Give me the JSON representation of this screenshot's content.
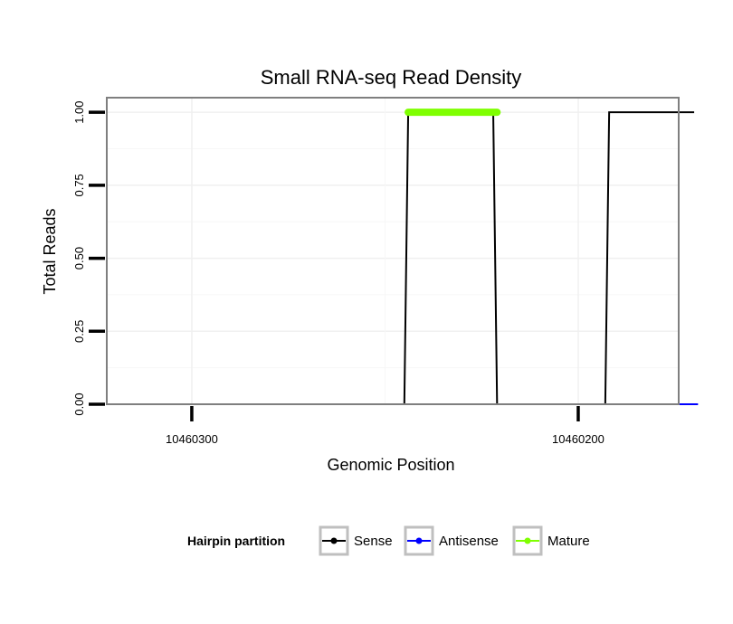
{
  "chart_data": {
    "type": "line",
    "title": "Small RNA-seq Read Density",
    "xlabel": "Genomic Position",
    "ylabel": "Total Reads",
    "x_reversed": true,
    "xlim": [
      10460322,
      10460174
    ],
    "ylim": [
      0,
      1.05
    ],
    "x_ticks": [
      10460300,
      10460200
    ],
    "x_tick_labels": [
      "10460300",
      "10460200"
    ],
    "y_ticks": [
      0,
      0.25,
      0.5,
      0.75,
      1.0
    ],
    "y_tick_labels": [
      "0.00",
      "0.25",
      "0.50",
      "0.75",
      "1.00"
    ],
    "grid": true,
    "legend": {
      "title": "Hairpin partition",
      "position": "bottom",
      "entries": [
        {
          "name": "Sense",
          "color": "#000000"
        },
        {
          "name": "Antisense",
          "color": "#0000ff"
        },
        {
          "name": "Mature",
          "color": "#7fff00"
        }
      ]
    },
    "series": [
      {
        "name": "Sense",
        "color": "#000000",
        "x": [
          10460319,
          10460245,
          10460244,
          10460222,
          10460221,
          10460193,
          10460192,
          10460170
        ],
        "y": [
          0,
          0,
          1,
          1,
          0,
          0,
          1,
          1
        ]
      },
      {
        "name": "Antisense",
        "color": "#0000ff",
        "x": [
          10460245,
          10460221,
          10460193,
          10460169
        ],
        "y": [
          0,
          0,
          0,
          0
        ]
      },
      {
        "name": "Mature",
        "color": "#7fff00",
        "x": [
          10460244,
          10460221
        ],
        "y": [
          1,
          1
        ]
      }
    ]
  }
}
